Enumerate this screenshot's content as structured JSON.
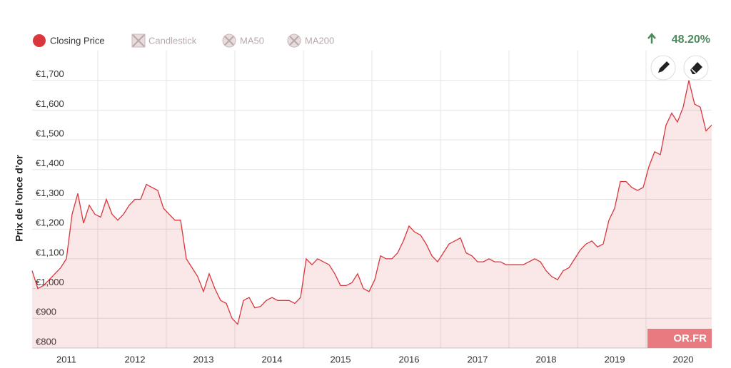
{
  "chart_data": {
    "type": "line",
    "y_axis_title": "Prix de l’once d’or",
    "change": "48.20%",
    "toggles": [
      "Candlestick",
      "MA50",
      "MA200"
    ],
    "logo": "OR.FR",
    "categories": [
      null,
      null,
      null,
      null,
      null,
      null,
      "2011",
      null,
      null,
      null,
      null,
      null,
      null,
      null,
      null,
      null,
      null,
      null,
      "2012",
      null,
      null,
      null,
      null,
      null,
      null,
      null,
      null,
      null,
      null,
      null,
      "2013",
      null,
      null,
      null,
      null,
      null,
      null,
      null,
      null,
      null,
      null,
      null,
      "2014",
      null,
      null,
      null,
      null,
      null,
      null,
      null,
      null,
      null,
      null,
      null,
      "2015",
      null,
      null,
      null,
      null,
      null,
      null,
      null,
      null,
      null,
      null,
      null,
      "2016",
      null,
      null,
      null,
      null,
      null,
      null,
      null,
      null,
      null,
      null,
      null,
      "2017",
      null,
      null,
      null,
      null,
      null,
      null,
      null,
      null,
      null,
      null,
      null,
      "2018",
      null,
      null,
      null,
      null,
      null,
      null,
      null,
      null,
      null,
      null,
      null,
      "2019",
      null,
      null,
      null,
      null,
      null,
      null,
      null,
      null,
      null,
      null,
      null,
      "2020",
      null,
      null,
      null,
      null,
      null
    ],
    "series": [
      {
        "name": "Closing Price",
        "color": "#d9363e",
        "values": [
          1060,
          1000,
          1010,
          1030,
          1050,
          1070,
          1100,
          1250,
          1320,
          1220,
          1280,
          1250,
          1240,
          1300,
          1250,
          1230,
          1250,
          1280,
          1300,
          1300,
          1350,
          1340,
          1330,
          1270,
          1250,
          1230,
          1230,
          1100,
          1070,
          1040,
          990,
          1050,
          1000,
          960,
          950,
          900,
          880,
          960,
          970,
          935,
          940,
          960,
          970,
          960,
          960,
          960,
          950,
          970,
          1100,
          1080,
          1100,
          1090,
          1080,
          1050,
          1010,
          1010,
          1020,
          1050,
          1000,
          990,
          1030,
          1110,
          1100,
          1100,
          1120,
          1160,
          1210,
          1190,
          1180,
          1150,
          1110,
          1090,
          1120,
          1150,
          1160,
          1170,
          1120,
          1110,
          1090,
          1090,
          1100,
          1090,
          1090,
          1080,
          1080,
          1080,
          1080,
          1090,
          1100,
          1090,
          1060,
          1040,
          1030,
          1060,
          1070,
          1100,
          1130,
          1150,
          1160,
          1140,
          1150,
          1230,
          1270,
          1360,
          1360,
          1340,
          1330,
          1340,
          1410,
          1460,
          1450,
          1550,
          1590,
          1560,
          1610,
          1700,
          1620,
          1610,
          1530,
          1550
        ]
      }
    ],
    "ylim": [
      800,
      1800
    ],
    "yticks": [
      {
        "value": 800,
        "label": "€800"
      },
      {
        "value": 900,
        "label": "€900"
      },
      {
        "value": 1000,
        "label": "€1,000"
      },
      {
        "value": 1100,
        "label": "€1,100"
      },
      {
        "value": 1200,
        "label": "€1,200"
      },
      {
        "value": 1300,
        "label": "€1,300"
      },
      {
        "value": 1400,
        "label": "€1,400"
      },
      {
        "value": 1500,
        "label": "€1,500"
      },
      {
        "value": 1600,
        "label": "€1,600"
      },
      {
        "value": 1700,
        "label": "€1,700"
      }
    ],
    "grid": true
  }
}
